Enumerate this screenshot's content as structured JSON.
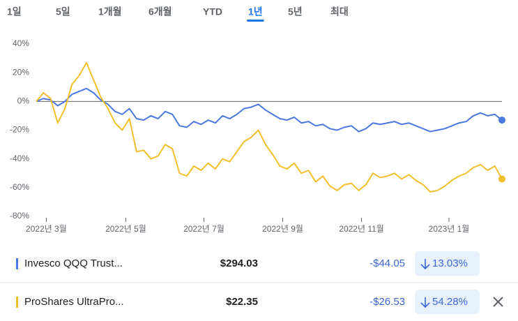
{
  "tabs": [
    "1일",
    "5일",
    "1개월",
    "6개월",
    "YTD",
    "1년",
    "5년",
    "최대"
  ],
  "active_tab": 5,
  "chart_data": {
    "type": "line",
    "series": [
      {
        "name": "Invesco QQQ Trust...",
        "color": "#4a78e0",
        "values": [
          0,
          2,
          1,
          -3,
          0,
          5,
          7,
          9,
          6,
          1,
          -2,
          -7,
          -9,
          -5,
          -12,
          -13,
          -10,
          -12,
          -7,
          -9,
          -17,
          -18,
          -14,
          -16,
          -13,
          -15,
          -10,
          -12,
          -9,
          -5,
          -4,
          -2,
          -6,
          -9,
          -12,
          -13,
          -11,
          -15,
          -14,
          -17,
          -16,
          -19,
          -20,
          -18,
          -17,
          -21,
          -19,
          -15,
          -16,
          -15,
          -14,
          -16,
          -15,
          -17,
          -19,
          -21,
          -20,
          -19,
          -17,
          -15,
          -14,
          -10,
          -8,
          -10,
          -9,
          -13
        ]
      },
      {
        "name": "ProShares UltraPro...",
        "color": "#f2bf2c",
        "values": [
          0,
          6,
          2,
          -15,
          -5,
          12,
          18,
          27,
          15,
          3,
          -5,
          -15,
          -20,
          -12,
          -35,
          -34,
          -40,
          -38,
          -30,
          -33,
          -50,
          -52,
          -45,
          -48,
          -43,
          -47,
          -40,
          -42,
          -35,
          -28,
          -25,
          -20,
          -30,
          -37,
          -45,
          -47,
          -43,
          -50,
          -48,
          -56,
          -52,
          -59,
          -62,
          -58,
          -57,
          -62,
          -58,
          -50,
          -53,
          -52,
          -50,
          -54,
          -51,
          -55,
          -58,
          -63,
          -62,
          -59,
          -55,
          -52,
          -50,
          -46,
          -44,
          -48,
          -45,
          -54
        ]
      }
    ],
    "xlim": [
      0,
      65
    ],
    "xticks": [
      {
        "value": 1.4,
        "label": "2022년 3월"
      },
      {
        "value": 12.5,
        "label": "2022년 5월"
      },
      {
        "value": 23.4,
        "label": "2022년 7월"
      },
      {
        "value": 34.4,
        "label": "2022년 9월"
      },
      {
        "value": 45.4,
        "label": "2022년 11월"
      },
      {
        "value": 57.6,
        "label": "2023년 1월"
      }
    ],
    "ylim": [
      -80,
      40
    ],
    "yticks": [
      {
        "value": -80,
        "label": "-80%"
      },
      {
        "value": -60,
        "label": "-60%"
      },
      {
        "value": -40,
        "label": "-40%"
      },
      {
        "value": -20,
        "label": "-20%"
      },
      {
        "value": 0,
        "label": "0%"
      },
      {
        "value": 20,
        "label": "20%"
      },
      {
        "value": 40,
        "label": "40%"
      }
    ],
    "zero_line": true
  },
  "rows": [
    {
      "price": "$294.03",
      "change": "-$44.05",
      "change_pct": "13.03%"
    },
    {
      "price": "$22.35",
      "change": "-$26.53",
      "change_pct": "54.28%"
    }
  ]
}
